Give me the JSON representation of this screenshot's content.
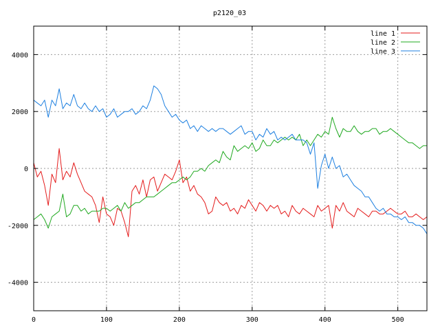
{
  "chart_data": {
    "type": "line",
    "title": "p2120_03",
    "xlabel": "",
    "ylabel": "",
    "xlim": [
      0,
      540
    ],
    "ylim": [
      -5000,
      5000
    ],
    "x_ticks": [
      0,
      100,
      200,
      300,
      400,
      500
    ],
    "y_ticks": [
      -4000,
      -2000,
      0,
      2000,
      4000
    ],
    "grid": true,
    "legend_position": "top-right",
    "series": [
      {
        "name": "line 1",
        "color": "#e41a1a",
        "x": [
          0,
          5,
          10,
          15,
          20,
          25,
          30,
          35,
          40,
          45,
          50,
          55,
          60,
          65,
          70,
          75,
          80,
          85,
          90,
          95,
          100,
          105,
          110,
          115,
          120,
          125,
          130,
          135,
          140,
          145,
          150,
          155,
          160,
          165,
          170,
          175,
          180,
          185,
          190,
          195,
          200,
          205,
          210,
          215,
          220,
          225,
          230,
          235,
          240,
          245,
          250,
          255,
          260,
          265,
          270,
          275,
          280,
          285,
          290,
          295,
          300,
          305,
          310,
          315,
          320,
          325,
          330,
          335,
          340,
          345,
          350,
          355,
          360,
          365,
          370,
          375,
          380,
          385,
          390,
          395,
          400,
          405,
          410,
          415,
          420,
          425,
          430,
          435,
          440,
          445,
          450,
          455,
          460,
          465,
          470,
          475,
          480,
          485,
          490,
          495,
          500,
          505,
          510,
          515,
          520,
          525,
          530,
          535,
          540
        ],
        "y": [
          200,
          -300,
          -100,
          -600,
          -1300,
          -200,
          -500,
          700,
          -400,
          -100,
          -300,
          200,
          -200,
          -500,
          -800,
          -900,
          -1000,
          -1300,
          -1900,
          -1000,
          -1600,
          -1700,
          -2000,
          -1400,
          -1500,
          -1900,
          -2400,
          -800,
          -600,
          -900,
          -400,
          -1000,
          -400,
          -300,
          -800,
          -500,
          -200,
          -300,
          -400,
          -100,
          300,
          -500,
          -300,
          -800,
          -600,
          -900,
          -1000,
          -1200,
          -1600,
          -1500,
          -1000,
          -1200,
          -1300,
          -1200,
          -1500,
          -1400,
          -1600,
          -1300,
          -1400,
          -1100,
          -1300,
          -1500,
          -1200,
          -1300,
          -1500,
          -1300,
          -1400,
          -1300,
          -1600,
          -1500,
          -1700,
          -1300,
          -1500,
          -1600,
          -1400,
          -1500,
          -1600,
          -1700,
          -1300,
          -1500,
          -1400,
          -1300,
          -2100,
          -1300,
          -1500,
          -1200,
          -1500,
          -1600,
          -1700,
          -1400,
          -1500,
          -1600,
          -1700,
          -1500,
          -1500,
          -1600,
          -1600,
          -1500,
          -1400,
          -1500,
          -1600,
          -1600,
          -1500,
          -1700,
          -1700,
          -1600,
          -1700,
          -1800,
          -1700
        ]
      },
      {
        "name": "line 2",
        "color": "#1fa81f",
        "x": [
          0,
          5,
          10,
          15,
          20,
          25,
          30,
          35,
          40,
          45,
          50,
          55,
          60,
          65,
          70,
          75,
          80,
          85,
          90,
          95,
          100,
          105,
          110,
          115,
          120,
          125,
          130,
          135,
          140,
          145,
          150,
          155,
          160,
          165,
          170,
          175,
          180,
          185,
          190,
          195,
          200,
          205,
          210,
          215,
          220,
          225,
          230,
          235,
          240,
          245,
          250,
          255,
          260,
          265,
          270,
          275,
          280,
          285,
          290,
          295,
          300,
          305,
          310,
          315,
          320,
          325,
          330,
          335,
          340,
          345,
          350,
          355,
          360,
          365,
          370,
          375,
          380,
          385,
          390,
          395,
          400,
          405,
          410,
          415,
          420,
          425,
          430,
          435,
          440,
          445,
          450,
          455,
          460,
          465,
          470,
          475,
          480,
          485,
          490,
          495,
          500,
          505,
          510,
          515,
          520,
          525,
          530,
          535,
          540
        ],
        "y": [
          -1800,
          -1700,
          -1600,
          -1800,
          -2100,
          -1700,
          -1600,
          -1500,
          -900,
          -1700,
          -1600,
          -1300,
          -1300,
          -1500,
          -1400,
          -1600,
          -1500,
          -1500,
          -1500,
          -1400,
          -1400,
          -1500,
          -1400,
          -1300,
          -1500,
          -1200,
          -1400,
          -1300,
          -1200,
          -1200,
          -1100,
          -1000,
          -1000,
          -1000,
          -900,
          -800,
          -700,
          -600,
          -500,
          -500,
          -400,
          -300,
          -400,
          -300,
          -100,
          -100,
          0,
          -100,
          100,
          200,
          300,
          200,
          600,
          400,
          300,
          800,
          600,
          700,
          800,
          700,
          900,
          600,
          700,
          1000,
          800,
          800,
          1000,
          900,
          1000,
          1100,
          1000,
          1100,
          1000,
          1200,
          800,
          1000,
          800,
          1000,
          1200,
          1100,
          1300,
          1200,
          1800,
          1400,
          1100,
          1400,
          1300,
          1300,
          1500,
          1300,
          1200,
          1300,
          1300,
          1400,
          1400,
          1200,
          1300,
          1300,
          1400,
          1300,
          1200,
          1100,
          1000,
          900,
          900,
          800,
          700,
          800,
          800
        ]
      },
      {
        "name": "line 3",
        "color": "#1c7fe0",
        "x": [
          0,
          5,
          10,
          15,
          20,
          25,
          30,
          35,
          40,
          45,
          50,
          55,
          60,
          65,
          70,
          75,
          80,
          85,
          90,
          95,
          100,
          105,
          110,
          115,
          120,
          125,
          130,
          135,
          140,
          145,
          150,
          155,
          160,
          165,
          170,
          175,
          180,
          185,
          190,
          195,
          200,
          205,
          210,
          215,
          220,
          225,
          230,
          235,
          240,
          245,
          250,
          255,
          260,
          265,
          270,
          275,
          280,
          285,
          290,
          295,
          300,
          305,
          310,
          315,
          320,
          325,
          330,
          335,
          340,
          345,
          350,
          355,
          360,
          365,
          370,
          375,
          380,
          385,
          390,
          395,
          400,
          405,
          410,
          415,
          420,
          425,
          430,
          435,
          440,
          445,
          450,
          455,
          460,
          465,
          470,
          475,
          480,
          485,
          490,
          495,
          500,
          505,
          510,
          515,
          520,
          525,
          530,
          535,
          540
        ],
        "y": [
          2400,
          2300,
          2200,
          2400,
          1800,
          2400,
          2200,
          2800,
          2100,
          2300,
          2200,
          2600,
          2200,
          2100,
          2300,
          2100,
          2000,
          2200,
          2000,
          2100,
          1800,
          1900,
          2100,
          1800,
          1900,
          2000,
          2000,
          2100,
          1900,
          2000,
          2200,
          2100,
          2400,
          2900,
          2800,
          2600,
          2200,
          2000,
          1800,
          1900,
          1700,
          1600,
          1700,
          1400,
          1500,
          1300,
          1500,
          1400,
          1300,
          1400,
          1300,
          1400,
          1400,
          1300,
          1200,
          1300,
          1400,
          1500,
          1200,
          1300,
          1300,
          1000,
          1200,
          1100,
          1400,
          1200,
          1300,
          1000,
          1100,
          1000,
          1100,
          1200,
          1000,
          1000,
          1000,
          900,
          500,
          900,
          -700,
          100,
          500,
          0,
          400,
          0,
          100,
          -300,
          -200,
          -400,
          -600,
          -700,
          -800,
          -1000,
          -1000,
          -1200,
          -1400,
          -1500,
          -1400,
          -1600,
          -1600,
          -1700,
          -1700,
          -1800,
          -1700,
          -1900,
          -1900,
          -2000,
          -2000,
          -2100,
          -2300
        ]
      }
    ]
  }
}
